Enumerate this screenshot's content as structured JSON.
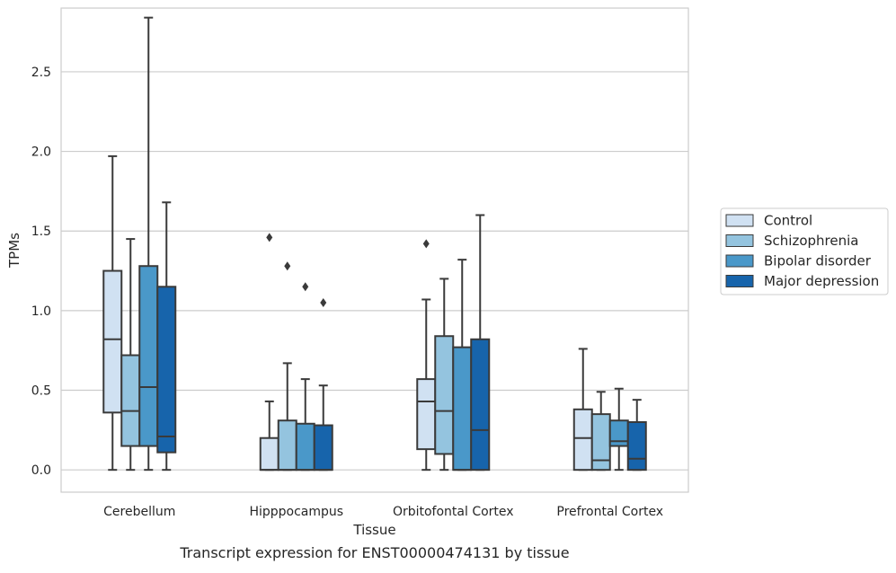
{
  "chart_data": {
    "type": "box",
    "title": "",
    "caption": "Transcript expression for ENST00000474131 by tissue",
    "xlabel": "Tissue",
    "ylabel": "TPMs",
    "ylim": [
      -0.14,
      2.9
    ],
    "yticks": [
      0.0,
      0.5,
      1.0,
      1.5,
      2.0,
      2.5
    ],
    "ytick_labels": [
      "0.0",
      "0.5",
      "1.0",
      "1.5",
      "2.0",
      "2.5"
    ],
    "grid": "horizontal",
    "legend_position": "right-outside",
    "categories": [
      "Cerebellum",
      "Hipppocampus",
      "Orbitofontal Cortex",
      "Prefrontal Cortex"
    ],
    "series": [
      {
        "name": "Control",
        "color": "#d0e1f2",
        "boxes": [
          {
            "whislo": 0.0,
            "q1": 0.36,
            "median": 0.82,
            "q3": 1.25,
            "whishi": 1.97,
            "fliers": []
          },
          {
            "whislo": 0.0,
            "q1": 0.0,
            "median": 0.0,
            "q3": 0.2,
            "whishi": 0.43,
            "fliers": [
              1.46
            ]
          },
          {
            "whislo": 0.0,
            "q1": 0.13,
            "median": 0.43,
            "q3": 0.57,
            "whishi": 1.07,
            "fliers": [
              1.42
            ]
          },
          {
            "whislo": 0.0,
            "q1": 0.0,
            "median": 0.2,
            "q3": 0.38,
            "whishi": 0.76,
            "fliers": []
          }
        ]
      },
      {
        "name": "Schizophrenia",
        "color": "#94c4df",
        "boxes": [
          {
            "whislo": 0.0,
            "q1": 0.15,
            "median": 0.37,
            "q3": 0.72,
            "whishi": 1.45,
            "fliers": []
          },
          {
            "whislo": 0.0,
            "q1": 0.0,
            "median": 0.0,
            "q3": 0.31,
            "whishi": 0.67,
            "fliers": [
              1.28
            ]
          },
          {
            "whislo": 0.0,
            "q1": 0.1,
            "median": 0.37,
            "q3": 0.84,
            "whishi": 1.2,
            "fliers": []
          },
          {
            "whislo": 0.0,
            "q1": 0.0,
            "median": 0.06,
            "q3": 0.35,
            "whishi": 0.49,
            "fliers": []
          }
        ]
      },
      {
        "name": "Bipolar disorder",
        "color": "#4a98c9",
        "boxes": [
          {
            "whislo": 0.0,
            "q1": 0.15,
            "median": 0.52,
            "q3": 1.28,
            "whishi": 2.84,
            "fliers": []
          },
          {
            "whislo": 0.0,
            "q1": 0.0,
            "median": 0.0,
            "q3": 0.29,
            "whishi": 0.57,
            "fliers": [
              1.15
            ]
          },
          {
            "whislo": 0.0,
            "q1": 0.0,
            "median": 0.0,
            "q3": 0.77,
            "whishi": 1.32,
            "fliers": []
          },
          {
            "whislo": 0.0,
            "q1": 0.15,
            "median": 0.18,
            "q3": 0.31,
            "whishi": 0.51,
            "fliers": []
          }
        ]
      },
      {
        "name": "Major depression",
        "color": "#1764ab",
        "boxes": [
          {
            "whislo": 0.0,
            "q1": 0.11,
            "median": 0.21,
            "q3": 1.15,
            "whishi": 1.68,
            "fliers": []
          },
          {
            "whislo": 0.0,
            "q1": 0.0,
            "median": 0.0,
            "q3": 0.28,
            "whishi": 0.53,
            "fliers": [
              1.05
            ]
          },
          {
            "whislo": 0.0,
            "q1": 0.0,
            "median": 0.25,
            "q3": 0.82,
            "whishi": 1.6,
            "fliers": []
          },
          {
            "whislo": 0.0,
            "q1": 0.0,
            "median": 0.07,
            "q3": 0.3,
            "whishi": 0.44,
            "fliers": []
          }
        ]
      }
    ]
  }
}
